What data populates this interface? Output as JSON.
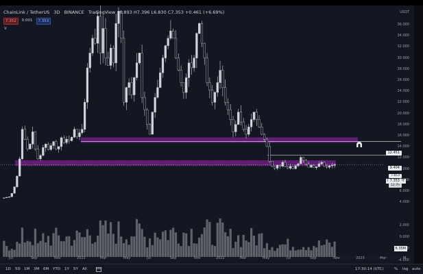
{
  "header": {
    "symbol": "ChainLink / TetherUS",
    "interval": "3D",
    "exchange": "BINANCE",
    "source": "TradingView",
    "ohlc": "6.893 H7.396 L6.830 C7.353 +0.461 (+6.69%)",
    "pills": [
      "7.352",
      "0.001",
      "7.353"
    ]
  },
  "volume_label": "V",
  "y_axis": {
    "currency": "USDT",
    "labels": [
      "36.000",
      "34.000",
      "32.000",
      "30.000",
      "28.000",
      "26.000",
      "24.000",
      "22.000",
      "20.000",
      "18.000",
      "16.000",
      "14.000",
      "12.000",
      "10.000",
      "8.000",
      "6.000",
      "4.000",
      "2.000",
      "0.000",
      "-2.000",
      "-4.000"
    ]
  },
  "price_tags": {
    "top_zone": "12.451",
    "mid_line": "9.404",
    "upper_small": "7.813",
    "current": "7.353",
    "symbol_tag": "LINKUSDT",
    "countdown": "12:7h",
    "volume": "6.35M"
  },
  "x_axis": [
    "Jul",
    "Sep",
    "Nov",
    "2021",
    "Mar",
    "May",
    "Jul",
    "Sep",
    "Nov",
    "2022",
    "Mar",
    "May",
    "Jul",
    "Sep",
    "Nov",
    "2023",
    "Mar",
    "M"
  ],
  "bottom_bar": {
    "timeframes": [
      "1D",
      "5D",
      "1M",
      "3M",
      "6M",
      "YTD",
      "1Y",
      "5Y",
      "All"
    ],
    "calendar_icon": "calendar-icon",
    "clock": "17:30:14 (UTC)",
    "percent": "%",
    "log": "log",
    "auto": "auto"
  },
  "colors": {
    "background": "#131722",
    "zone": "#9c27b0",
    "candle": "#d1d4dc",
    "volume": "#7a7d85"
  },
  "chart_data": {
    "type": "bar",
    "title": "",
    "xlabel": "",
    "ylabel": "USDT",
    "ylim": [
      0,
      38
    ],
    "zones": [
      {
        "low": 11.9,
        "high": 12.45
      },
      {
        "low": 7.2,
        "high": 7.8
      }
    ],
    "levels": [
      9.404
    ],
    "close_series": [
      0.6,
      0.7,
      0.8,
      1.5,
      2.8,
      5.0,
      8.5,
      14.5,
      12.5,
      10.5,
      11.5,
      14,
      10.5,
      8.5,
      9.2,
      10.8,
      11.5,
      10.4,
      11.2,
      12.0,
      10.5,
      11.0,
      12.8,
      11.8,
      12.5,
      12.2,
      12.9,
      14.5,
      13.0,
      13.8,
      14.5,
      20.0,
      27.0,
      30.0,
      33.0,
      32.0,
      37.5,
      30.0,
      35.0,
      29.0,
      27.5,
      31.0,
      28.0,
      36.0,
      38.5,
      33.0,
      20.0,
      23.0,
      24.0,
      21.5,
      25.0,
      28.0,
      30.0,
      21.0,
      18.5,
      15.5,
      13.5,
      18.0,
      21.0,
      23.0,
      26.0,
      29.0,
      31.5,
      33.0,
      34.5,
      33.0,
      29.0,
      26.5,
      24.0,
      22.0,
      25.0,
      28.0,
      27.0,
      29.0,
      34.0,
      36.0,
      32.0,
      29.0,
      24.0,
      22.5,
      20.0,
      22.0,
      24.0,
      26.5,
      23.0,
      20.0,
      18.5,
      16.5,
      14.0,
      15.5,
      18.0,
      16.0,
      14.5,
      13.5,
      15.0,
      16.5,
      18.0,
      16.5,
      15.0,
      13.5,
      12.5,
      11.0,
      8.0,
      7.0,
      6.6,
      7.2,
      7.0,
      7.8,
      6.9,
      6.6,
      7.0,
      6.5,
      7.1,
      7.5,
      8.8,
      8.2,
      7.4,
      6.8,
      7.2,
      6.7,
      6.9,
      7.5,
      7.8,
      7.0,
      6.8,
      7.1,
      7.2,
      7.353
    ]
  }
}
